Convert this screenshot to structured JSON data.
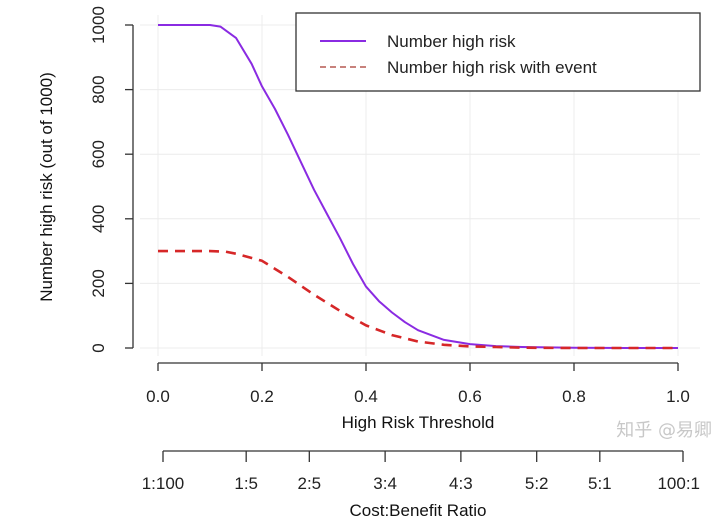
{
  "chart_data": {
    "type": "line",
    "title": "",
    "xlabel": "High Risk Threshold",
    "ylabel": "Number high risk (out of 1000)",
    "xlim": [
      0,
      1
    ],
    "ylim": [
      0,
      1000
    ],
    "grid": true,
    "x_ticks": [
      "0.0",
      "0.2",
      "0.4",
      "0.6",
      "0.8",
      "1.0"
    ],
    "x_tick_values": [
      0,
      0.2,
      0.4,
      0.6,
      0.8,
      1.0
    ],
    "y_ticks": [
      "0",
      "200",
      "400",
      "600",
      "800",
      "1000"
    ],
    "y_tick_values": [
      0,
      200,
      400,
      600,
      800,
      1000
    ],
    "secondary_axis": {
      "label": "Cost:Benefit Ratio",
      "ticks": [
        "1:100",
        "1:5",
        "2:5",
        "3:4",
        "4:3",
        "5:2",
        "5:1",
        "100:1"
      ],
      "tick_values": [
        0.0099,
        0.1667,
        0.2857,
        0.4286,
        0.5714,
        0.7143,
        0.8333,
        0.9901
      ]
    },
    "legend": {
      "position": "top-right",
      "entries": [
        {
          "label": "Number high risk",
          "color": "#8a2be2",
          "style": "solid"
        },
        {
          "label": "Number high risk with event",
          "color": "#d62728",
          "style": "dashed"
        }
      ]
    },
    "series": [
      {
        "name": "Number high risk",
        "color": "#8a2be2",
        "style": "solid",
        "x": [
          0,
          0.05,
          0.1,
          0.12,
          0.15,
          0.18,
          0.2,
          0.225,
          0.25,
          0.275,
          0.3,
          0.325,
          0.35,
          0.375,
          0.4,
          0.425,
          0.45,
          0.475,
          0.5,
          0.55,
          0.6,
          0.65,
          0.7,
          0.8,
          0.9,
          1.0
        ],
        "y": [
          1000,
          1000,
          1000,
          995,
          960,
          880,
          810,
          740,
          660,
          575,
          490,
          415,
          340,
          260,
          190,
          145,
          110,
          80,
          55,
          25,
          12,
          6,
          3,
          1,
          0,
          0
        ]
      },
      {
        "name": "Number high risk with event",
        "color": "#d62728",
        "style": "dashed",
        "x": [
          0,
          0.05,
          0.1,
          0.13,
          0.15,
          0.2,
          0.25,
          0.3,
          0.35,
          0.4,
          0.45,
          0.5,
          0.55,
          0.6,
          0.65,
          0.7,
          0.8,
          0.9,
          1.0
        ],
        "y": [
          300,
          300,
          300,
          298,
          292,
          270,
          220,
          165,
          115,
          70,
          40,
          20,
          10,
          5,
          3,
          1,
          0,
          0,
          0
        ]
      }
    ]
  },
  "watermark": "知乎 @易卿"
}
